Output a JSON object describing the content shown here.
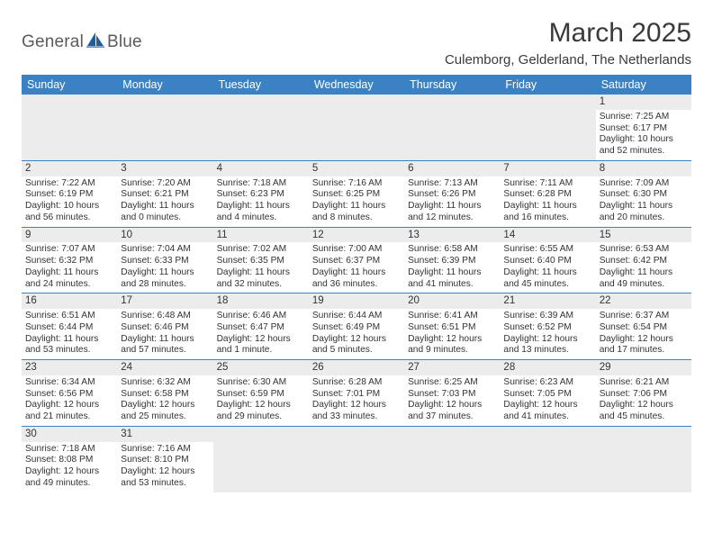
{
  "brand": {
    "name_part1": "General",
    "name_part2": "Blue",
    "text_color": "#5a5a5a",
    "icon_color": "#1e5fa0"
  },
  "title": "March 2025",
  "subtitle": "Culemborg, Gelderland, The Netherlands",
  "colors": {
    "header_bg": "#3b82c4",
    "header_text": "#ffffff",
    "row_divider": "#3b82c4",
    "daynum_bg": "#ececec",
    "empty_bg": "#ececec",
    "body_text": "#333333",
    "page_bg": "#ffffff"
  },
  "day_names": [
    "Sunday",
    "Monday",
    "Tuesday",
    "Wednesday",
    "Thursday",
    "Friday",
    "Saturday"
  ],
  "weeks": [
    [
      null,
      null,
      null,
      null,
      null,
      null,
      {
        "n": "1",
        "sunrise": "Sunrise: 7:25 AM",
        "sunset": "Sunset: 6:17 PM",
        "daylight1": "Daylight: 10 hours",
        "daylight2": "and 52 minutes."
      }
    ],
    [
      {
        "n": "2",
        "sunrise": "Sunrise: 7:22 AM",
        "sunset": "Sunset: 6:19 PM",
        "daylight1": "Daylight: 10 hours",
        "daylight2": "and 56 minutes."
      },
      {
        "n": "3",
        "sunrise": "Sunrise: 7:20 AM",
        "sunset": "Sunset: 6:21 PM",
        "daylight1": "Daylight: 11 hours",
        "daylight2": "and 0 minutes."
      },
      {
        "n": "4",
        "sunrise": "Sunrise: 7:18 AM",
        "sunset": "Sunset: 6:23 PM",
        "daylight1": "Daylight: 11 hours",
        "daylight2": "and 4 minutes."
      },
      {
        "n": "5",
        "sunrise": "Sunrise: 7:16 AM",
        "sunset": "Sunset: 6:25 PM",
        "daylight1": "Daylight: 11 hours",
        "daylight2": "and 8 minutes."
      },
      {
        "n": "6",
        "sunrise": "Sunrise: 7:13 AM",
        "sunset": "Sunset: 6:26 PM",
        "daylight1": "Daylight: 11 hours",
        "daylight2": "and 12 minutes."
      },
      {
        "n": "7",
        "sunrise": "Sunrise: 7:11 AM",
        "sunset": "Sunset: 6:28 PM",
        "daylight1": "Daylight: 11 hours",
        "daylight2": "and 16 minutes."
      },
      {
        "n": "8",
        "sunrise": "Sunrise: 7:09 AM",
        "sunset": "Sunset: 6:30 PM",
        "daylight1": "Daylight: 11 hours",
        "daylight2": "and 20 minutes."
      }
    ],
    [
      {
        "n": "9",
        "sunrise": "Sunrise: 7:07 AM",
        "sunset": "Sunset: 6:32 PM",
        "daylight1": "Daylight: 11 hours",
        "daylight2": "and 24 minutes."
      },
      {
        "n": "10",
        "sunrise": "Sunrise: 7:04 AM",
        "sunset": "Sunset: 6:33 PM",
        "daylight1": "Daylight: 11 hours",
        "daylight2": "and 28 minutes."
      },
      {
        "n": "11",
        "sunrise": "Sunrise: 7:02 AM",
        "sunset": "Sunset: 6:35 PM",
        "daylight1": "Daylight: 11 hours",
        "daylight2": "and 32 minutes."
      },
      {
        "n": "12",
        "sunrise": "Sunrise: 7:00 AM",
        "sunset": "Sunset: 6:37 PM",
        "daylight1": "Daylight: 11 hours",
        "daylight2": "and 36 minutes."
      },
      {
        "n": "13",
        "sunrise": "Sunrise: 6:58 AM",
        "sunset": "Sunset: 6:39 PM",
        "daylight1": "Daylight: 11 hours",
        "daylight2": "and 41 minutes."
      },
      {
        "n": "14",
        "sunrise": "Sunrise: 6:55 AM",
        "sunset": "Sunset: 6:40 PM",
        "daylight1": "Daylight: 11 hours",
        "daylight2": "and 45 minutes."
      },
      {
        "n": "15",
        "sunrise": "Sunrise: 6:53 AM",
        "sunset": "Sunset: 6:42 PM",
        "daylight1": "Daylight: 11 hours",
        "daylight2": "and 49 minutes."
      }
    ],
    [
      {
        "n": "16",
        "sunrise": "Sunrise: 6:51 AM",
        "sunset": "Sunset: 6:44 PM",
        "daylight1": "Daylight: 11 hours",
        "daylight2": "and 53 minutes."
      },
      {
        "n": "17",
        "sunrise": "Sunrise: 6:48 AM",
        "sunset": "Sunset: 6:46 PM",
        "daylight1": "Daylight: 11 hours",
        "daylight2": "and 57 minutes."
      },
      {
        "n": "18",
        "sunrise": "Sunrise: 6:46 AM",
        "sunset": "Sunset: 6:47 PM",
        "daylight1": "Daylight: 12 hours",
        "daylight2": "and 1 minute."
      },
      {
        "n": "19",
        "sunrise": "Sunrise: 6:44 AM",
        "sunset": "Sunset: 6:49 PM",
        "daylight1": "Daylight: 12 hours",
        "daylight2": "and 5 minutes."
      },
      {
        "n": "20",
        "sunrise": "Sunrise: 6:41 AM",
        "sunset": "Sunset: 6:51 PM",
        "daylight1": "Daylight: 12 hours",
        "daylight2": "and 9 minutes."
      },
      {
        "n": "21",
        "sunrise": "Sunrise: 6:39 AM",
        "sunset": "Sunset: 6:52 PM",
        "daylight1": "Daylight: 12 hours",
        "daylight2": "and 13 minutes."
      },
      {
        "n": "22",
        "sunrise": "Sunrise: 6:37 AM",
        "sunset": "Sunset: 6:54 PM",
        "daylight1": "Daylight: 12 hours",
        "daylight2": "and 17 minutes."
      }
    ],
    [
      {
        "n": "23",
        "sunrise": "Sunrise: 6:34 AM",
        "sunset": "Sunset: 6:56 PM",
        "daylight1": "Daylight: 12 hours",
        "daylight2": "and 21 minutes."
      },
      {
        "n": "24",
        "sunrise": "Sunrise: 6:32 AM",
        "sunset": "Sunset: 6:58 PM",
        "daylight1": "Daylight: 12 hours",
        "daylight2": "and 25 minutes."
      },
      {
        "n": "25",
        "sunrise": "Sunrise: 6:30 AM",
        "sunset": "Sunset: 6:59 PM",
        "daylight1": "Daylight: 12 hours",
        "daylight2": "and 29 minutes."
      },
      {
        "n": "26",
        "sunrise": "Sunrise: 6:28 AM",
        "sunset": "Sunset: 7:01 PM",
        "daylight1": "Daylight: 12 hours",
        "daylight2": "and 33 minutes."
      },
      {
        "n": "27",
        "sunrise": "Sunrise: 6:25 AM",
        "sunset": "Sunset: 7:03 PM",
        "daylight1": "Daylight: 12 hours",
        "daylight2": "and 37 minutes."
      },
      {
        "n": "28",
        "sunrise": "Sunrise: 6:23 AM",
        "sunset": "Sunset: 7:05 PM",
        "daylight1": "Daylight: 12 hours",
        "daylight2": "and 41 minutes."
      },
      {
        "n": "29",
        "sunrise": "Sunrise: 6:21 AM",
        "sunset": "Sunset: 7:06 PM",
        "daylight1": "Daylight: 12 hours",
        "daylight2": "and 45 minutes."
      }
    ],
    [
      {
        "n": "30",
        "sunrise": "Sunrise: 7:18 AM",
        "sunset": "Sunset: 8:08 PM",
        "daylight1": "Daylight: 12 hours",
        "daylight2": "and 49 minutes."
      },
      {
        "n": "31",
        "sunrise": "Sunrise: 7:16 AM",
        "sunset": "Sunset: 8:10 PM",
        "daylight1": "Daylight: 12 hours",
        "daylight2": "and 53 minutes."
      },
      null,
      null,
      null,
      null,
      null
    ]
  ]
}
